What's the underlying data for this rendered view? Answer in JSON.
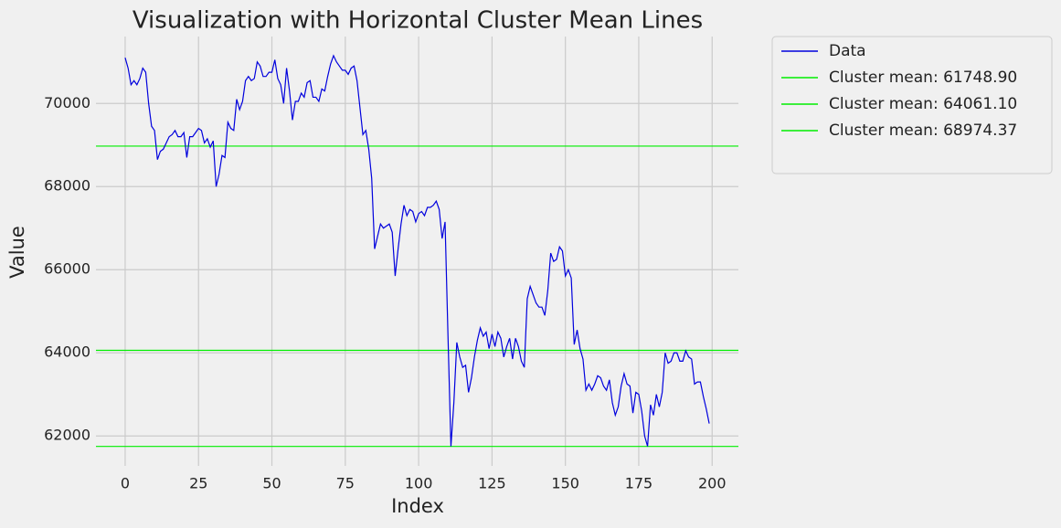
{
  "chart_data": {
    "type": "line",
    "title": "Visualization with Horizontal Cluster Mean Lines",
    "x_label": "Index",
    "y_label": "Value",
    "x": [
      0,
      1,
      2,
      3,
      4,
      5,
      6,
      7,
      8,
      9,
      10,
      11,
      12,
      13,
      14,
      15,
      16,
      17,
      18,
      19,
      20,
      21,
      22,
      23,
      24,
      25,
      26,
      27,
      28,
      29,
      30,
      31,
      32,
      33,
      34,
      35,
      36,
      37,
      38,
      39,
      40,
      41,
      42,
      43,
      44,
      45,
      46,
      47,
      48,
      49,
      50,
      51,
      52,
      53,
      54,
      55,
      56,
      57,
      58,
      59,
      60,
      61,
      62,
      63,
      64,
      65,
      66,
      67,
      68,
      69,
      70,
      71,
      72,
      73,
      74,
      75,
      76,
      77,
      78,
      79,
      80,
      81,
      82,
      83,
      84,
      85,
      86,
      87,
      88,
      89,
      90,
      91,
      92,
      93,
      94,
      95,
      96,
      97,
      98,
      99,
      100,
      101,
      102,
      103,
      104,
      105,
      106,
      107,
      108,
      109,
      110,
      111,
      112,
      113,
      114,
      115,
      116,
      117,
      118,
      119,
      120,
      121,
      122,
      123,
      124,
      125,
      126,
      127,
      128,
      129,
      130,
      131,
      132,
      133,
      134,
      135,
      136,
      137,
      138,
      139,
      140,
      141,
      142,
      143,
      144,
      145,
      146,
      147,
      148,
      149,
      150,
      151,
      152,
      153,
      154,
      155,
      156,
      157,
      158,
      159,
      160,
      161,
      162,
      163,
      164,
      165,
      166,
      167,
      168,
      169,
      170,
      171,
      172,
      173,
      174,
      175,
      176,
      177,
      178,
      179,
      180,
      181,
      182,
      183,
      184,
      185,
      186,
      187,
      188,
      189,
      190,
      191,
      192,
      193,
      194,
      195,
      196,
      197,
      198,
      199
    ],
    "series": [
      {
        "name": "Data",
        "color": "#0000dd",
        "values": [
          71100,
          70850,
          70450,
          70550,
          70450,
          70600,
          70850,
          70750,
          70000,
          69450,
          69350,
          68650,
          68850,
          68900,
          69050,
          69200,
          69250,
          69350,
          69200,
          69200,
          69300,
          68700,
          69200,
          69200,
          69300,
          69400,
          69350,
          69050,
          69150,
          68950,
          69100,
          68000,
          68300,
          68750,
          68700,
          69550,
          69400,
          69350,
          70100,
          69850,
          70050,
          70550,
          70650,
          70550,
          70600,
          71000,
          70900,
          70650,
          70650,
          70750,
          70750,
          71050,
          70600,
          70450,
          70000,
          70850,
          70300,
          69600,
          70050,
          70050,
          70250,
          70150,
          70500,
          70550,
          70150,
          70150,
          70050,
          70350,
          70300,
          70650,
          70950,
          71150,
          71000,
          70900,
          70800,
          70800,
          70700,
          70850,
          70900,
          70550,
          69900,
          69250,
          69350,
          68900,
          68200,
          66500,
          66800,
          67100,
          67000,
          67050,
          67100,
          66900,
          65850,
          66500,
          67100,
          67550,
          67300,
          67450,
          67400,
          67150,
          67350,
          67400,
          67300,
          67500,
          67500,
          67550,
          67650,
          67450,
          66750,
          67150,
          64400,
          61750,
          62800,
          64250,
          63900,
          63650,
          63700,
          63050,
          63400,
          63900,
          64300,
          64600,
          64400,
          64500,
          64100,
          64450,
          64150,
          64500,
          64350,
          63900,
          64150,
          64350,
          63850,
          64350,
          64150,
          63800,
          63650,
          65300,
          65600,
          65400,
          65200,
          65100,
          65100,
          64900,
          65500,
          66400,
          66200,
          66250,
          66550,
          66450,
          65850,
          66000,
          65800,
          64200,
          64550,
          64100,
          63850,
          63100,
          63250,
          63100,
          63250,
          63450,
          63400,
          63200,
          63100,
          63350,
          62800,
          62500,
          62700,
          63200,
          63500,
          63250,
          63200,
          62550,
          63050,
          63000,
          62600,
          62000,
          61750,
          62750,
          62500,
          63000,
          62700,
          63050,
          64000,
          63750,
          63800,
          64000,
          64000,
          63800,
          63800,
          64050,
          63900,
          63850,
          63250,
          63300,
          63300,
          62950,
          62650,
          62300
        ]
      }
    ],
    "hlines": [
      {
        "name": "Cluster mean: 61748.90",
        "value": 61748.9,
        "color": "#00ee00"
      },
      {
        "name": "Cluster mean: 64061.10",
        "value": 64061.1,
        "color": "#00ee00"
      },
      {
        "name": "Cluster mean: 68974.37",
        "value": 68974.37,
        "color": "#00ee00"
      }
    ],
    "xlim": [
      -9.95,
      208.95
    ],
    "ylim": [
      61280,
      71610
    ],
    "xticks": [
      0,
      25,
      50,
      75,
      100,
      125,
      150,
      175,
      200
    ],
    "yticks": [
      62000,
      64000,
      66000,
      68000,
      70000
    ],
    "grid": true,
    "legend": "outside right"
  }
}
